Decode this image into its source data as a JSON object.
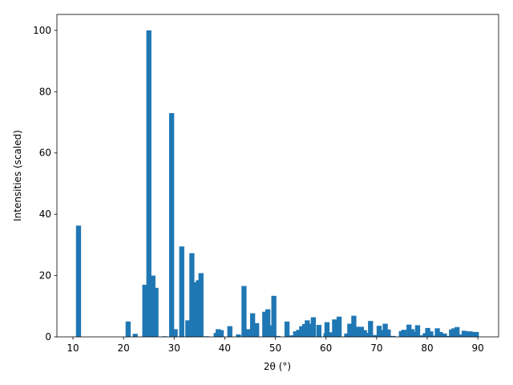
{
  "chart_data": {
    "type": "bar",
    "xlabel": "2θ (°)",
    "ylabel": "Intensities (scaled)",
    "color": "#1f77b4",
    "x": [
      11.1,
      20.9,
      22.3,
      24.2,
      25.0,
      25.8,
      26.4,
      28.1,
      29.5,
      30.2,
      31.5,
      32.7,
      33.5,
      34.3,
      34.8,
      35.3,
      36.4,
      38.3,
      38.7,
      39.3,
      41.0,
      42.7,
      43.8,
      44.6,
      45.5,
      46.3,
      47.9,
      48.5,
      49.0,
      49.7,
      50.5,
      52.3,
      53.3,
      54.0,
      54.6,
      55.2,
      55.8,
      56.3,
      57.0,
      57.5,
      58.6,
      60.0,
      60.2,
      61.1,
      61.7,
      62.6,
      64.1,
      64.7,
      65.5,
      66.1,
      67.0,
      67.6,
      68.3,
      68.8,
      69.8,
      70.5,
      71.1,
      71.7,
      72.3,
      73.3,
      74.9,
      75.4,
      76.4,
      77.0,
      77.5,
      78.1,
      78.8,
      79.6,
      80.1,
      80.7,
      81.3,
      82.0,
      82.6,
      83.4,
      84.1,
      84.8,
      85.3,
      85.9,
      86.5,
      87.3,
      87.9,
      88.5,
      89.2,
      89.7
    ],
    "values": [
      36.3,
      5,
      1,
      17,
      100,
      20,
      16,
      0.2,
      73,
      2.5,
      29.5,
      5.4,
      27.3,
      17.8,
      18.5,
      20.8,
      0.2,
      1.3,
      2.5,
      2.2,
      3.5,
      0.8,
      16.6,
      2.5,
      7.7,
      4.5,
      8.2,
      9.0,
      3.8,
      13.4,
      0.3,
      5,
      0.5,
      1.8,
      2.3,
      3.5,
      4.2,
      5.4,
      4.3,
      6.4,
      3.9,
      1.2,
      4.8,
      1.5,
      5.7,
      6.6,
      1.1,
      4.3,
      6.9,
      3.3,
      3.3,
      2.2,
      1.3,
      5.2,
      0.6,
      3.6,
      2.2,
      4.3,
      2.4,
      0.3,
      1.9,
      2.3,
      4,
      2.5,
      1.6,
      3.8,
      0.5,
      1.2,
      2.9,
      1.8,
      0.4,
      2.8,
      1.6,
      1.1,
      0.3,
      2.4,
      2.8,
      3.2,
      0.8,
      2,
      1.8,
      1.8,
      1.6,
      1.6
    ],
    "xlim": [
      6.83,
      94.1
    ],
    "ylim": [
      0,
      105.2
    ],
    "xticks": [
      10,
      20,
      30,
      40,
      50,
      60,
      70,
      80,
      90
    ],
    "yticks": [
      0,
      20,
      40,
      60,
      80,
      100
    ]
  }
}
